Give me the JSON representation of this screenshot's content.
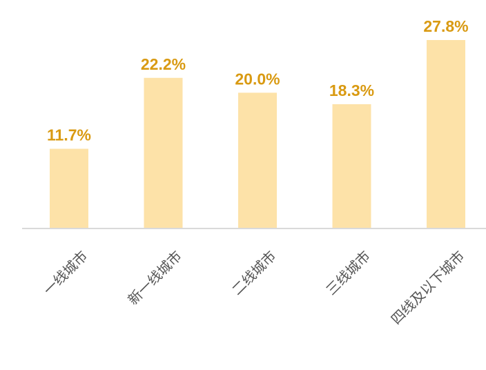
{
  "chart_data": {
    "type": "bar",
    "categories": [
      "一线城市",
      "新一线城市",
      "二线城市",
      "三线城市",
      "四线及以下城市"
    ],
    "values": [
      11.7,
      22.2,
      20.0,
      18.3,
      27.8
    ],
    "value_labels": [
      "11.7%",
      "22.2%",
      "20.0%",
      "18.3%",
      "27.8%"
    ],
    "color": "#fde2a8",
    "label_color": "#d99a12"
  }
}
